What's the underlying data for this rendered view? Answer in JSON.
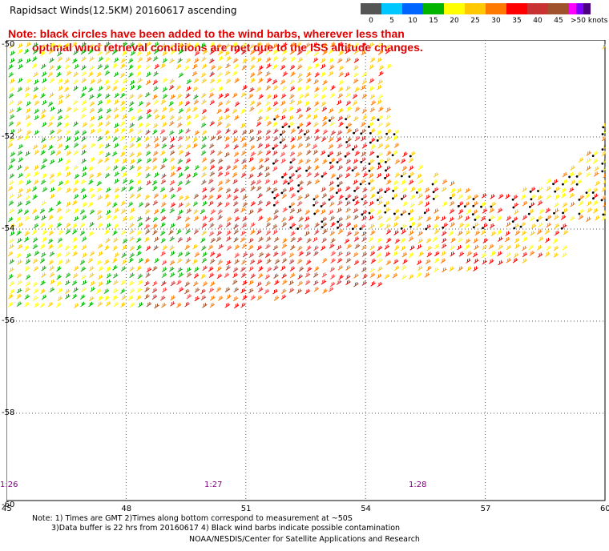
{
  "title": "Rapidsact Winds(12.5KM) 20160617 ascending",
  "note": {
    "line1": "Note: black circles have been added to the wind barbs, wherever less than",
    "line2": "optimal wind retrieval conditions are met due to the ISS altitude changes."
  },
  "legend": {
    "labels": [
      "0",
      "5",
      "10",
      "15",
      "20",
      "25",
      "30",
      "35",
      "40",
      "45",
      ">50 knots"
    ],
    "colors": [
      "#555555",
      "#00c8ff",
      "#0064ff",
      "#00b400",
      "#ffff00",
      "#ffc800",
      "#ff7800",
      "#ff0000",
      "#c83232",
      "#a0522d",
      "#ff00ff",
      "#8000ff",
      "#4b0082"
    ]
  },
  "map": {
    "lat_labels": [
      "-50",
      "-52",
      "-54",
      "-56",
      "-58",
      "-60"
    ],
    "lon_labels": [
      "45",
      "48",
      "51",
      "54",
      "57",
      "60"
    ],
    "time_labels": [
      "1:26",
      "1:27",
      "1:28"
    ]
  },
  "footer": {
    "line1": "Note: 1) Times are GMT 2)Times along bottom correspond to measurement at ~50S",
    "line2": "3)Data buffer is 22 hrs from 20160617 4) Black wind barbs indicate possible contamination",
    "credit": "NOAA/NESDIS/Center for Satellite Applications and Research"
  }
}
